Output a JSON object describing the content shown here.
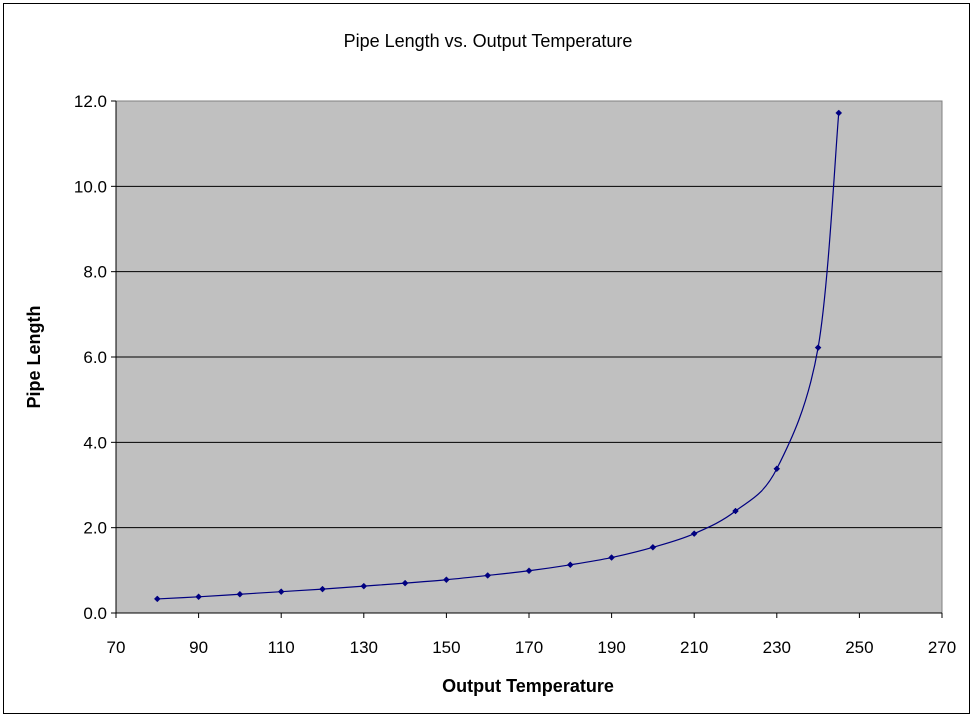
{
  "chart_data": {
    "type": "line",
    "title": "Pipe Length vs. Output Temperature",
    "xlabel": "Output Temperature",
    "ylabel": "Pipe Length",
    "xlim": [
      70,
      270
    ],
    "ylim": [
      0,
      12
    ],
    "x_ticks": [
      70,
      90,
      110,
      130,
      150,
      170,
      190,
      210,
      230,
      250,
      270
    ],
    "y_ticks": [
      "0.0",
      "2.0",
      "4.0",
      "6.0",
      "8.0",
      "10.0",
      "12.0"
    ],
    "grid": "horizontal",
    "plot_background": "#c0c0c0",
    "series": [
      {
        "color": "#000080",
        "x": [
          80,
          90,
          100,
          110,
          120,
          130,
          140,
          150,
          160,
          170,
          180,
          190,
          200,
          210,
          220,
          230,
          240,
          245
        ],
        "y": [
          0.33,
          0.38,
          0.44,
          0.5,
          0.56,
          0.63,
          0.7,
          0.78,
          0.88,
          0.99,
          1.13,
          1.3,
          1.54,
          1.86,
          2.39,
          3.38,
          6.22,
          11.72
        ]
      }
    ]
  }
}
